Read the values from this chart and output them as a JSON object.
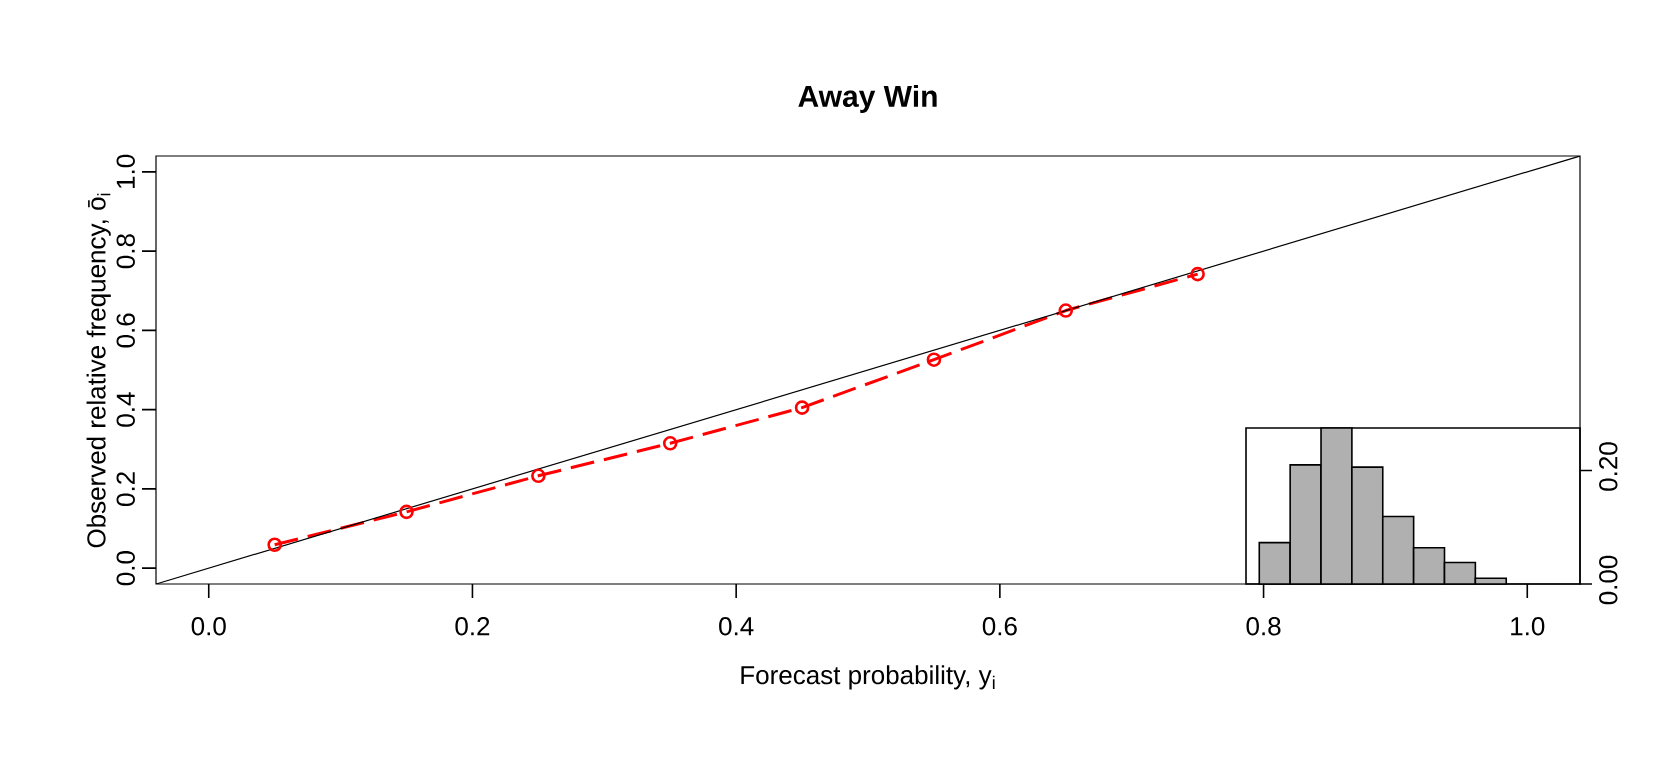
{
  "chart_data": [
    {
      "type": "line",
      "title": "Away Win",
      "xlabel": "Forecast probability, y$_{i}$",
      "ylabel": "Observed relative frequency, ō$_{i}$",
      "xlim": [
        -0.04,
        1.04
      ],
      "ylim": [
        -0.04,
        1.04
      ],
      "xticks": [
        {
          "value": 0,
          "label": "0.0"
        },
        0.2,
        0.4,
        0.6,
        0.8,
        {
          "value": 1,
          "label": "1.0"
        }
      ],
      "yticks": [
        {
          "value": 0,
          "label": "0.0"
        },
        0.2,
        0.4,
        0.6,
        0.8,
        {
          "value": 1,
          "label": "1.0"
        }
      ],
      "grid": false,
      "series": [
        {
          "color": "#ff0000",
          "marker": "circle",
          "line_style": "dashed",
          "x": [
            0.05,
            0.15,
            0.25,
            0.35,
            0.45,
            0.55,
            0.65,
            0.75
          ],
          "values": [
            0.059,
            0.142,
            0.233,
            0.315,
            0.405,
            0.526,
            0.65,
            0.742
          ]
        },
        {
          "color": "#000000",
          "marker": "none",
          "line_style": "solid",
          "x": [
            -0.04,
            1.04
          ],
          "values": [
            -0.04,
            1.04
          ]
        }
      ]
    },
    {
      "type": "bar",
      "color": "#b0b0b0",
      "categories": [
        null,
        null,
        null,
        null,
        null,
        null,
        null,
        null
      ],
      "values": [
        0.073,
        0.21,
        0.275,
        0.206,
        0.119,
        0.064,
        0.038,
        0.01
      ],
      "ylim": [
        0,
        0.275
      ],
      "yticks": [
        {
          "value": 0,
          "label": "0.00"
        },
        {
          "value": 0.2,
          "label": "0.20"
        }
      ],
      "tick_labels": "y"
    }
  ]
}
